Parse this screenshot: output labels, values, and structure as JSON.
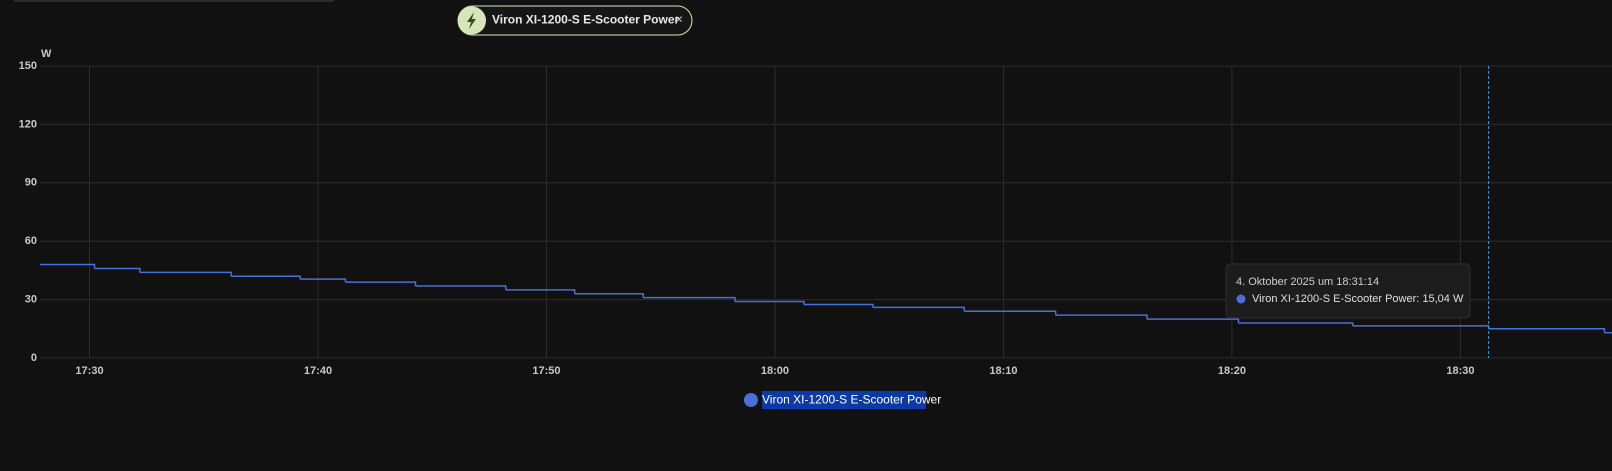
{
  "header": {
    "chip": "Viron XI-1200-S E-Scooter Power"
  },
  "chart_data": {
    "type": "step",
    "y_unit": "W",
    "x": [
      "17:27:50",
      "17:30:13",
      "17:32:12",
      "17:36:12",
      "17:39:13",
      "17:41:12",
      "17:44:16",
      "17:48:13",
      "17:51:14",
      "17:54:14",
      "17:58:15",
      "18:01:16",
      "18:04:17",
      "18:08:17",
      "18:12:17",
      "18:16:17",
      "18:20:17",
      "18:25:17",
      "18:31:14",
      "18:36:18"
    ],
    "series": [
      {
        "name": "Viron XI-1200-S E-Scooter Power",
        "color": "#4a6fd8",
        "values": [
          48,
          46,
          44,
          42,
          40.5,
          39,
          37,
          35,
          33,
          31,
          29,
          27.5,
          26,
          24,
          22,
          20,
          18,
          16.5,
          15.04,
          13
        ]
      }
    ],
    "xlim": [
      "17:27:50",
      "18:36:38"
    ],
    "xticks": [
      "17:30",
      "17:40",
      "17:50",
      "18:00",
      "18:10",
      "18:20",
      "18:30"
    ],
    "ylim": [
      0,
      150
    ],
    "yticks": [
      0,
      30,
      60,
      90,
      120,
      150
    ],
    "grid": true,
    "tooltip": {
      "x": "18:31:14",
      "title": "4. Oktober 2025 um 18:31:14",
      "label": "Viron XI-1200-S E-Scooter Power: 15,04 W"
    }
  }
}
